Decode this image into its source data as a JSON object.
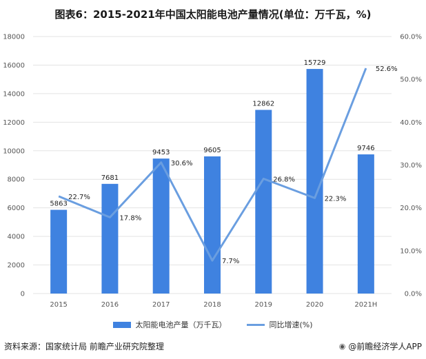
{
  "title": "图表6：2015-2021年中国太阳能电池产量情况(单位：万千瓦，%)",
  "source": "资料来源：国家统计局 前瞻产业研究院整理",
  "brand": "@前瞻经济学人APP",
  "brand_icon": "weibo-icon",
  "chart_data": {
    "type": "bar",
    "categories": [
      "2015",
      "2016",
      "2017",
      "2018",
      "2019",
      "2020",
      "2021H"
    ],
    "series": [
      {
        "name": "太阳能电池产量（万千瓦）",
        "type": "bar",
        "axis": "left",
        "values": [
          5863,
          7681,
          9453,
          9605,
          12862,
          15729,
          9746
        ],
        "labels": [
          "5863",
          "7681",
          "9453",
          "9605",
          "12862",
          "15729",
          "9746"
        ],
        "color": "#3f82e0"
      },
      {
        "name": "同比增速(%)",
        "type": "line",
        "axis": "right",
        "values": [
          22.7,
          17.8,
          30.6,
          7.7,
          26.8,
          22.3,
          52.6
        ],
        "labels": [
          "22.7%",
          "17.8%",
          "30.6%",
          "7.7%",
          "26.8%",
          "22.3%",
          "52.6%"
        ],
        "color": "#6a9ee0"
      }
    ],
    "y_left": {
      "min": 0,
      "max": 18000,
      "ticks": [
        "0",
        "2000",
        "4000",
        "6000",
        "8000",
        "10000",
        "12000",
        "14000",
        "16000",
        "18000"
      ]
    },
    "y_right": {
      "min": 0,
      "max": 60,
      "ticks": [
        "0.0%",
        "10.0%",
        "20.0%",
        "30.0%",
        "40.0%",
        "50.0%",
        "60.0%"
      ]
    },
    "grid": true,
    "legend_position": "bottom"
  }
}
